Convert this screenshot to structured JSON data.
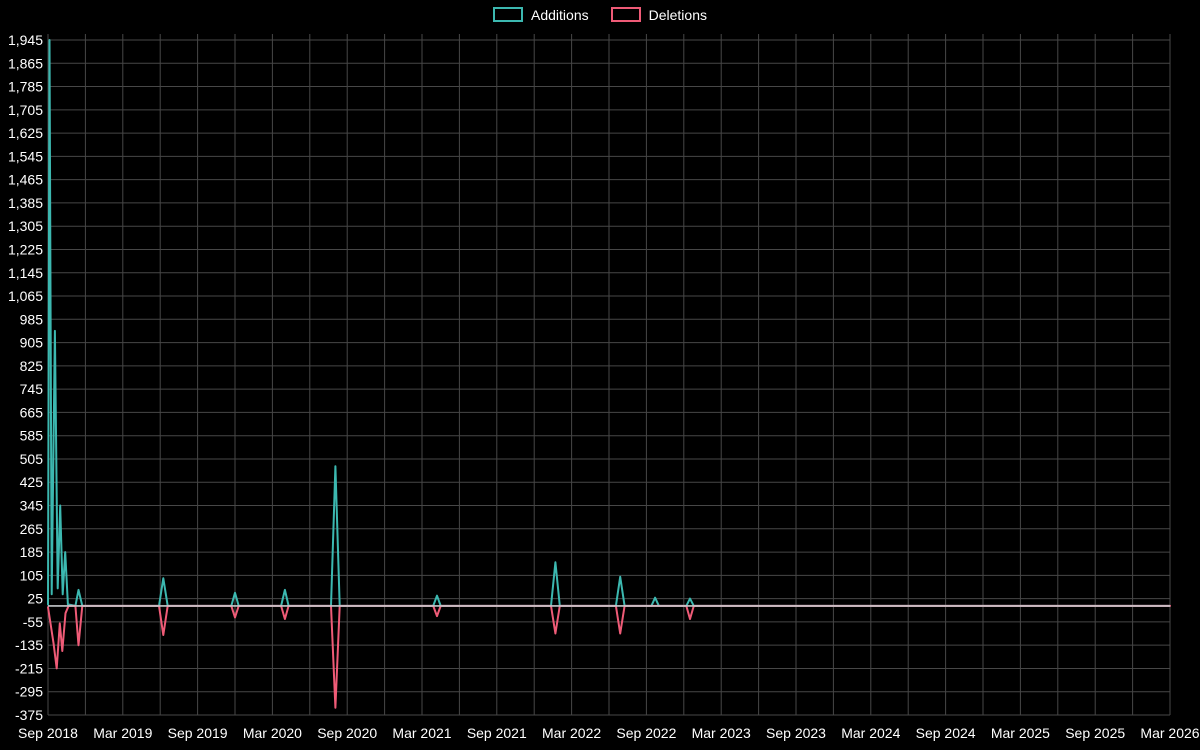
{
  "page": {
    "background": "#000000",
    "text_color": "#ffffff"
  },
  "legend": {
    "items": [
      {
        "label": "Additions"
      },
      {
        "label": "Deletions"
      }
    ]
  },
  "chart_data": {
    "type": "line",
    "title": "",
    "xlabel": "",
    "ylabel": "",
    "x_unit": "months since Sep 2018",
    "x_range": [
      0,
      90
    ],
    "y_range": [
      -375,
      1945
    ],
    "y_tick_step": 80,
    "y_tick_labels": [
      "1,945",
      "1,865",
      "1,785",
      "1,705",
      "1,625",
      "1,545",
      "1,465",
      "1,385",
      "1,305",
      "1,225",
      "1,145",
      "1,065",
      "985",
      "905",
      "825",
      "745",
      "665",
      "585",
      "505",
      "425",
      "345",
      "265",
      "185",
      "105",
      "25",
      "-55",
      "-135",
      "-215",
      "-295",
      "-375"
    ],
    "x_tick_labels": [
      "Sep 2018",
      "Mar 2019",
      "Sep 2019",
      "Mar 2020",
      "Sep 2020",
      "Mar 2021",
      "Sep 2021",
      "Mar 2022",
      "Sep 2022",
      "Mar 2023",
      "Sep 2023",
      "Mar 2024",
      "Sep 2024",
      "Mar 2025",
      "Sep 2025",
      "Mar 2026"
    ],
    "x_tick_positions": [
      0,
      6,
      12,
      18,
      24,
      30,
      36,
      42,
      48,
      54,
      60,
      66,
      72,
      78,
      84,
      90
    ],
    "grid": {
      "on": true,
      "color": "#474747",
      "x_step_months": 3,
      "zero_line_color": "#c6c9cc"
    },
    "legend_position": "top-center",
    "series": [
      {
        "name": "Additions",
        "color": "#3cb8b0",
        "points": [
          [
            0.0,
            5
          ],
          [
            0.12,
            1945
          ],
          [
            0.3,
            40
          ],
          [
            0.55,
            945
          ],
          [
            0.78,
            60
          ],
          [
            0.98,
            345
          ],
          [
            1.18,
            40
          ],
          [
            1.38,
            185
          ],
          [
            1.6,
            5
          ],
          [
            2.2,
            0
          ],
          [
            2.45,
            55
          ],
          [
            2.75,
            0
          ],
          [
            8.9,
            0
          ],
          [
            9.25,
            95
          ],
          [
            9.6,
            0
          ],
          [
            14.7,
            0
          ],
          [
            15.0,
            45
          ],
          [
            15.3,
            0
          ],
          [
            18.7,
            0
          ],
          [
            19.0,
            55
          ],
          [
            19.3,
            0
          ],
          [
            22.7,
            0
          ],
          [
            23.05,
            480
          ],
          [
            23.4,
            0
          ],
          [
            30.9,
            0
          ],
          [
            31.2,
            35
          ],
          [
            31.5,
            0
          ],
          [
            40.35,
            0
          ],
          [
            40.7,
            150
          ],
          [
            41.05,
            0
          ],
          [
            45.55,
            0
          ],
          [
            45.9,
            100
          ],
          [
            46.25,
            0
          ],
          [
            48.4,
            0
          ],
          [
            48.7,
            28
          ],
          [
            49.0,
            0
          ],
          [
            51.2,
            0
          ],
          [
            51.5,
            25
          ],
          [
            51.8,
            0
          ],
          [
            90,
            0
          ]
        ]
      },
      {
        "name": "Deletions",
        "color": "#ef5b77",
        "points": [
          [
            0.0,
            -5
          ],
          [
            0.2,
            -60
          ],
          [
            0.45,
            -130
          ],
          [
            0.7,
            -215
          ],
          [
            0.95,
            -60
          ],
          [
            1.15,
            -155
          ],
          [
            1.4,
            -25
          ],
          [
            1.65,
            0
          ],
          [
            2.2,
            0
          ],
          [
            2.45,
            -135
          ],
          [
            2.75,
            0
          ],
          [
            8.9,
            0
          ],
          [
            9.25,
            -100
          ],
          [
            9.6,
            0
          ],
          [
            14.7,
            0
          ],
          [
            15.0,
            -40
          ],
          [
            15.3,
            0
          ],
          [
            18.7,
            0
          ],
          [
            19.0,
            -45
          ],
          [
            19.3,
            0
          ],
          [
            22.7,
            0
          ],
          [
            23.05,
            -350
          ],
          [
            23.4,
            0
          ],
          [
            30.9,
            0
          ],
          [
            31.2,
            -35
          ],
          [
            31.5,
            0
          ],
          [
            40.35,
            0
          ],
          [
            40.7,
            -95
          ],
          [
            41.05,
            0
          ],
          [
            45.55,
            0
          ],
          [
            45.9,
            -95
          ],
          [
            46.25,
            0
          ],
          [
            51.2,
            0
          ],
          [
            51.5,
            -45
          ],
          [
            51.8,
            0
          ],
          [
            90,
            0
          ]
        ]
      }
    ]
  }
}
